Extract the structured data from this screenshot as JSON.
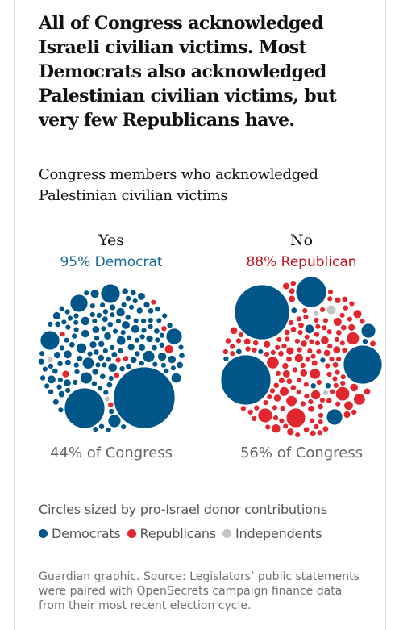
{
  "headline": "All of Congress acknowledged Israeli civilian victims. Most Democrats also acknowledged Palestinian civilian victims, but very few Republicans have.",
  "chart_data": {
    "type": "bubble",
    "title": "Congress members who acknowledged Palestinian civilian victims",
    "groups": [
      {
        "label": "Yes",
        "majority": "95% Democrat",
        "majority_color": "#1a6a9a",
        "share": "44% of Congress",
        "composition": {
          "Democrats": 0.95,
          "Republicans": 0.04,
          "Independents": 0.01
        }
      },
      {
        "label": "No",
        "majority": "88% Republican",
        "majority_color": "#c7101f",
        "share": "56% of Congress",
        "composition": {
          "Democrats": 0.11,
          "Republicans": 0.88,
          "Independents": 0.01
        }
      }
    ],
    "size_note": "Circles sized by pro-Israel donor contributions",
    "legend": [
      {
        "name": "Democrats",
        "color": "#005689"
      },
      {
        "name": "Republicans",
        "color": "#e0262f"
      },
      {
        "name": "Independents",
        "color": "#c4c4c4"
      }
    ]
  },
  "source": "Guardian graphic. Source: Legislators’ public statements were paired with OpenSecrets campaign finance data from their most recent election cycle."
}
